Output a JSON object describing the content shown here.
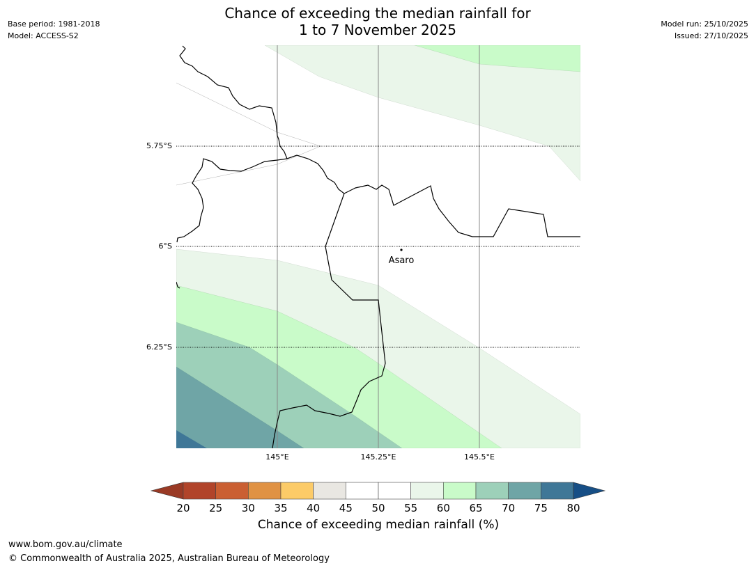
{
  "header": {
    "title_line1": "Chance of exceeding the median rainfall for",
    "title_line2": "1 to 7 November 2025",
    "base_period": "Base period: 1981-2018",
    "model": "Model: ACCESS-S2",
    "model_run": "Model run: 25/10/2025",
    "issued": "Issued: 27/10/2025"
  },
  "map": {
    "lat_labels": [
      "5.75°S",
      "6°S",
      "6.25°S"
    ],
    "lon_labels": [
      "145°E",
      "145.25°E",
      "145.5°E"
    ],
    "town": {
      "name": "Asaro"
    }
  },
  "colorbar": {
    "title": "Chance of exceeding median rainfall (%)",
    "ticks": [
      "20",
      "25",
      "30",
      "35",
      "40",
      "45",
      "50",
      "55",
      "60",
      "65",
      "70",
      "75",
      "80"
    ],
    "below_color": "#9a3a25",
    "above_color": "#174f86",
    "colors": [
      "#b1442a",
      "#ca5f32",
      "#e09244",
      "#fccb68",
      "#e9e7e2",
      "#ffffff",
      "#ffffff",
      "#eaf6ea",
      "#c9fbc9",
      "#9dd0b9",
      "#6fa5a6",
      "#3f7797"
    ]
  },
  "footer": {
    "url": "www.bom.gov.au/climate",
    "copyright": "© Commonwealth of Australia 2025, Australian Bureau of Meteorology"
  }
}
